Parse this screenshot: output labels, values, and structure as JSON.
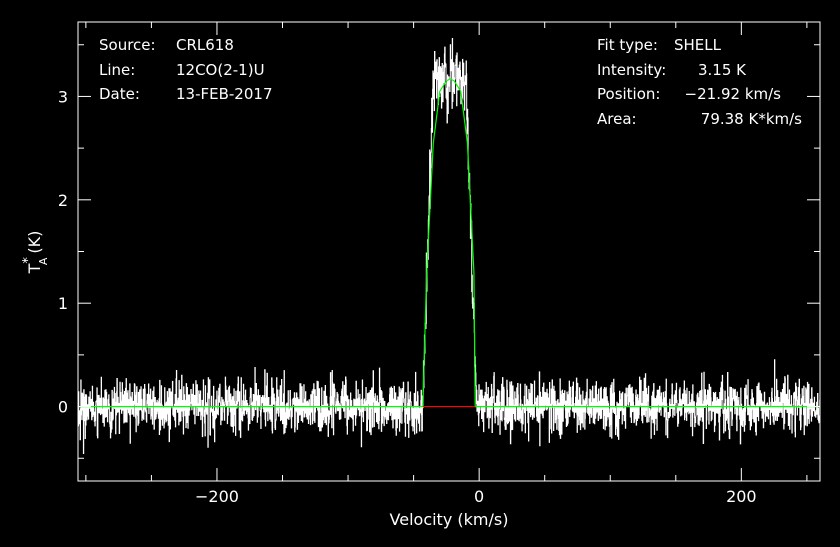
{
  "chart_data": {
    "type": "line",
    "xlabel": "Velocity (km/s)",
    "ylabel": "T",
    "ylabel_sub": "A",
    "ylabel_sup": "*",
    "ylabel_unit": "(K)",
    "xlim": [
      -306,
      260
    ],
    "ylim": [
      -0.72,
      3.72
    ],
    "xticks": [
      {
        "value": -200,
        "label": "−200"
      },
      {
        "value": 0,
        "label": "0"
      },
      {
        "value": 200,
        "label": "200"
      }
    ],
    "yticks": [
      {
        "value": 0,
        "label": "0"
      },
      {
        "value": 1,
        "label": "1"
      },
      {
        "value": 2,
        "label": "2"
      },
      {
        "value": 3,
        "label": "3"
      }
    ],
    "info_left": [
      {
        "key": "Source:",
        "value": "CRL618"
      },
      {
        "key": "Line:",
        "value": "12CO(2-1)U"
      },
      {
        "key": "Date:",
        "value": "13-FEB-2017"
      }
    ],
    "info_right": [
      {
        "key": "Fit type:",
        "value": "SHELL"
      },
      {
        "key": "Intensity:",
        "value": "3.15 K"
      },
      {
        "key": "Position:",
        "value": "−21.92 km/s"
      },
      {
        "key": "Area:",
        "value": "79.38 K*km/s"
      }
    ],
    "fit": {
      "x": [
        -306,
        -43,
        -40,
        -35,
        -30,
        -25,
        -22,
        -19,
        -14,
        -9,
        -4,
        -3,
        260
      ],
      "y": [
        0,
        0,
        1.3,
        2.55,
        3.05,
        3.15,
        3.17,
        3.15,
        3.05,
        2.55,
        1.3,
        0,
        0
      ]
    },
    "residual_segment": {
      "x": [
        -43,
        -3
      ],
      "y": [
        0,
        0
      ]
    },
    "spectrum": {
      "x_start": -306,
      "x_end": 260,
      "points": 2260,
      "noise_rms": 0.13,
      "peak": 3.56,
      "line_center": -22.5,
      "line_halfwidth": 20.5
    },
    "colors": {
      "background": "#000000",
      "axes": "#ffffff",
      "spectrum": "#ffffff",
      "fit": "#00ff00",
      "residual": "#ff0000"
    }
  }
}
